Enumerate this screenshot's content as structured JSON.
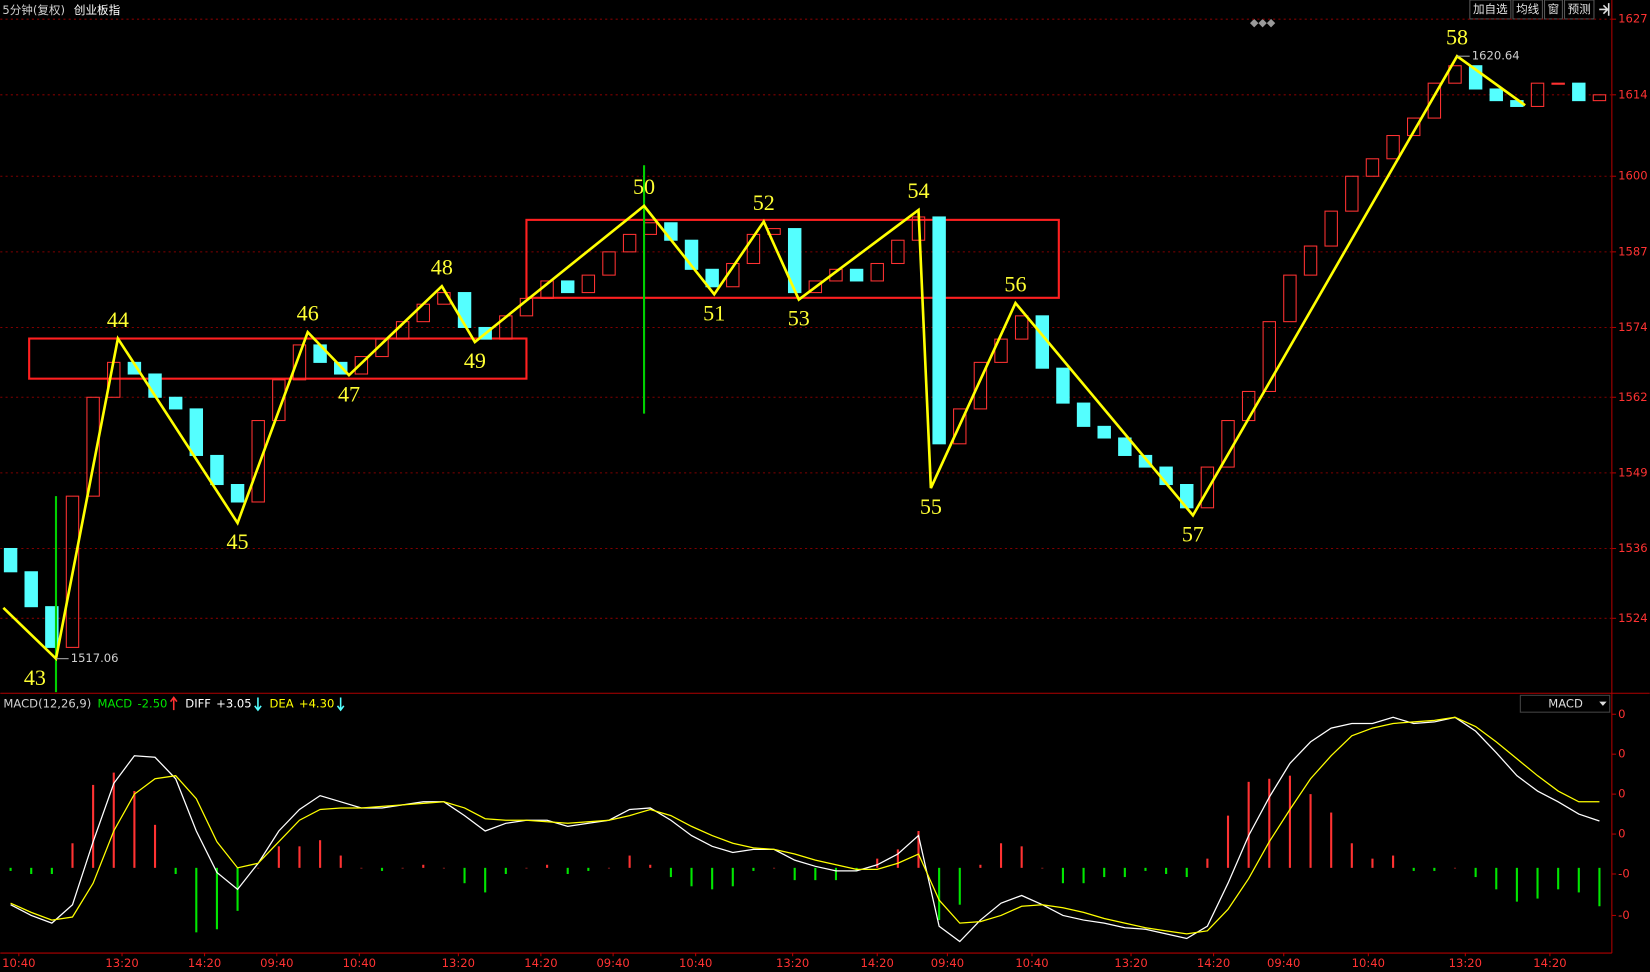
{
  "header": {
    "period": "5分钟(复权)",
    "buttons": [
      "加自选",
      "均线",
      "窗",
      "预测"
    ]
  },
  "chart_data": [
    {
      "type": "candlestick",
      "title": "创业板指",
      "grid": true,
      "up_color": "#ff3232",
      "down_color": "#54ffff",
      "xlim": [
        0,
        78
      ],
      "ylim": [
        1511.3,
        1630.3
      ],
      "yticks": [
        1627,
        1614,
        1600,
        1587,
        1574,
        1562,
        1549,
        1536,
        1524
      ],
      "open": [
        1536,
        1532,
        1526,
        1519,
        1545,
        1562,
        1568,
        1566,
        1562,
        1560,
        1552,
        1547,
        1544,
        1558,
        1565,
        1571,
        1568,
        1566,
        1569,
        1572,
        1575,
        1578,
        1580,
        1574,
        1572,
        1576,
        1579,
        1582,
        1580,
        1583,
        1587,
        1590,
        1592,
        1589,
        1584,
        1581,
        1585,
        1590,
        1591,
        1580,
        1582,
        1584,
        1582,
        1585,
        1589,
        1593,
        1554,
        1560,
        1568,
        1572,
        1576,
        1567,
        1561,
        1557,
        1555,
        1552,
        1550,
        1547,
        1543,
        1550,
        1558,
        1563,
        1575,
        1583,
        1588,
        1594,
        1600,
        1603,
        1607,
        1610,
        1616,
        1619,
        1615,
        1613,
        1612,
        1616,
        1616,
        1613
      ],
      "close": [
        1532,
        1526,
        1519,
        1545,
        1562,
        1568,
        1566,
        1562,
        1560,
        1552,
        1547,
        1544,
        1558,
        1565,
        1571,
        1568,
        1566,
        1569,
        1572,
        1575,
        1578,
        1580,
        1574,
        1572,
        1576,
        1579,
        1582,
        1580,
        1583,
        1587,
        1590,
        1592,
        1589,
        1584,
        1581,
        1585,
        1590,
        1591,
        1580,
        1582,
        1584,
        1582,
        1585,
        1589,
        1593,
        1554,
        1560,
        1568,
        1572,
        1576,
        1567,
        1561,
        1557,
        1555,
        1552,
        1550,
        1547,
        1543,
        1550,
        1558,
        1563,
        1575,
        1583,
        1588,
        1594,
        1600,
        1603,
        1607,
        1610,
        1616,
        1619,
        1615,
        1613,
        1612,
        1616,
        1616,
        1613,
        1614
      ],
      "zigzag": {
        "color": "#ffff00",
        "x": [
          0.15,
          2.7,
          5.7,
          11.5,
          14.9,
          16.9,
          21.4,
          23,
          31.2,
          34.6,
          37,
          38.7,
          44.5,
          45.1,
          49.2,
          57.8,
          70.6,
          73.9
        ],
        "values": [
          1525.8,
          1517.06,
          1572.1,
          1540.4,
          1573.2,
          1565.8,
          1581.1,
          1571.5,
          1594.9,
          1579.7,
          1592.2,
          1578.8,
          1594.2,
          1546.4,
          1578.2,
          1541.7,
          1620.64,
          1612.2
        ],
        "labels": [
          null,
          "43",
          "44",
          "45",
          "46",
          "47",
          "48",
          "49",
          "50",
          "51",
          "52",
          "53",
          "54",
          "55",
          "56",
          "57",
          "58",
          null
        ]
      },
      "boxes": [
        {
          "color": "#ff2020",
          "x": [
            1.4,
            25.5
          ],
          "y": [
            1565.2,
            1572.1
          ]
        },
        {
          "color": "#ff2020",
          "x": [
            25.5,
            51.3
          ],
          "y": [
            1579.1,
            1592.5
          ]
        }
      ],
      "vlines": [
        {
          "color": "#00d000",
          "x": 2.7,
          "y": [
            1511.3,
            1545
          ]
        },
        {
          "color": "#00d000",
          "x": 31.2,
          "y": [
            1559.2,
            1601.9
          ]
        }
      ]
    },
    {
      "type": "macd",
      "indicator": "MACD(12,26,9)",
      "selector": "MACD",
      "grid": false,
      "xlim": [
        0,
        78
      ],
      "ylim": [
        -5.48,
        11.3
      ],
      "xticks": [
        {
          "value": 0.9,
          "label": "10:40"
        },
        {
          "value": 5.9,
          "label": "13:20"
        },
        {
          "value": 9.9,
          "label": "14:20"
        },
        {
          "value": 13.4,
          "label": "09:40"
        },
        {
          "value": 17.4,
          "label": "10:40"
        },
        {
          "value": 22.2,
          "label": "13:20"
        },
        {
          "value": 26.2,
          "label": "14:20"
        },
        {
          "value": 29.7,
          "label": "09:40"
        },
        {
          "value": 33.7,
          "label": "10:40"
        },
        {
          "value": 38.4,
          "label": "13:20"
        },
        {
          "value": 42.5,
          "label": "14:20"
        },
        {
          "value": 45.9,
          "label": "09:40"
        },
        {
          "value": 50,
          "label": "10:40"
        },
        {
          "value": 54.8,
          "label": "13:20"
        },
        {
          "value": 58.8,
          "label": "14:20"
        },
        {
          "value": 62.2,
          "label": "09:40"
        },
        {
          "value": 66.3,
          "label": "10:40"
        },
        {
          "value": 71,
          "label": "13:20"
        },
        {
          "value": 75.1,
          "label": "14:20"
        }
      ],
      "yticks": [
        {
          "value": 10,
          "label": "0"
        },
        {
          "value": 7.4,
          "label": "0"
        },
        {
          "value": 4.8,
          "label": "0"
        },
        {
          "value": 2.2,
          "label": "0"
        },
        {
          "value": -0.4,
          "label": "-0"
        },
        {
          "value": -3.1,
          "label": "-0"
        }
      ],
      "series": [
        {
          "name": "MACD",
          "color": "#00e600",
          "up_color": "#ff3232",
          "down_color": "#00e600",
          "kind": "bar",
          "last_label": "-2.50",
          "trend": "up",
          "values": [
            -0.2,
            -0.4,
            -0.4,
            1.6,
            5.4,
            6.2,
            5.0,
            2.8,
            -0.4,
            -4.2,
            -4.0,
            -2.8,
            0,
            1.4,
            1.4,
            1.8,
            0.8,
            0,
            -0.2,
            0,
            0.2,
            0,
            -1.0,
            -1.6,
            -0.4,
            0,
            0.2,
            -0.4,
            -0.2,
            0,
            0.8,
            0.2,
            -0.6,
            -1.2,
            -1.4,
            -1.2,
            -0.2,
            0,
            -0.8,
            -0.8,
            -0.8,
            -0.2,
            0.6,
            1.2,
            2.4,
            -3.4,
            -2.4,
            0.2,
            1.6,
            1.4,
            0,
            -1.0,
            -1.0,
            -0.6,
            -0.6,
            -0.2,
            -0.4,
            -0.6,
            0.6,
            3.4,
            5.6,
            5.8,
            6.0,
            4.8,
            3.6,
            1.6,
            0.6,
            0.8,
            -0.2,
            -0.2,
            0,
            -0.6,
            -1.4,
            -2.2,
            -2.0,
            -1.4,
            -1.6,
            -2.5
          ]
        },
        {
          "name": "DIFF",
          "color": "#ffffff",
          "kind": "line",
          "last_label": "+3.05",
          "trend": "down",
          "values": [
            -2.4,
            -3.1,
            -3.6,
            -2.4,
            1.7,
            5.5,
            7.3,
            7.2,
            5.8,
            2.4,
            -0.3,
            -1.4,
            0.3,
            2.4,
            3.8,
            4.7,
            4.3,
            3.9,
            3.9,
            4.1,
            4.3,
            4.3,
            3.4,
            2.4,
            2.9,
            3.1,
            3.1,
            2.7,
            2.9,
            3.1,
            3.8,
            3.9,
            3.1,
            2.1,
            1.4,
            1.0,
            1.2,
            1.2,
            0.5,
            0.1,
            -0.2,
            -0.2,
            0.2,
            0.9,
            2.1,
            -3.8,
            -4.8,
            -3.4,
            -2.3,
            -1.8,
            -2.4,
            -3.1,
            -3.4,
            -3.6,
            -3.9,
            -4.0,
            -4.3,
            -4.6,
            -3.8,
            -1.0,
            2.1,
            4.6,
            6.8,
            8.2,
            9.1,
            9.4,
            9.4,
            9.8,
            9.4,
            9.5,
            9.8,
            8.9,
            7.5,
            6.0,
            5.0,
            4.3,
            3.5,
            3.05
          ]
        },
        {
          "name": "DEA",
          "color": "#ffff00",
          "kind": "line",
          "last_label": "+4.30",
          "trend": "down",
          "values": [
            -2.3,
            -2.9,
            -3.4,
            -3.2,
            -1.0,
            2.4,
            4.8,
            5.8,
            6.0,
            4.5,
            1.7,
            0,
            0.3,
            1.7,
            3.1,
            3.8,
            3.9,
            3.9,
            4.0,
            4.1,
            4.2,
            4.3,
            3.9,
            3.2,
            3.1,
            3.1,
            3.0,
            2.9,
            3.0,
            3.1,
            3.4,
            3.8,
            3.4,
            2.7,
            2.1,
            1.6,
            1.3,
            1.2,
            0.9,
            0.5,
            0.2,
            -0.1,
            -0.1,
            0.3,
            0.9,
            -2.1,
            -3.6,
            -3.5,
            -3.1,
            -2.5,
            -2.4,
            -2.6,
            -2.9,
            -3.3,
            -3.6,
            -3.9,
            -4.1,
            -4.3,
            -4.1,
            -2.7,
            -0.7,
            1.7,
            3.8,
            5.8,
            7.3,
            8.6,
            9.1,
            9.4,
            9.5,
            9.6,
            9.8,
            9.2,
            8.2,
            7.1,
            6.0,
            5.0,
            4.3,
            4.3
          ]
        }
      ]
    }
  ]
}
